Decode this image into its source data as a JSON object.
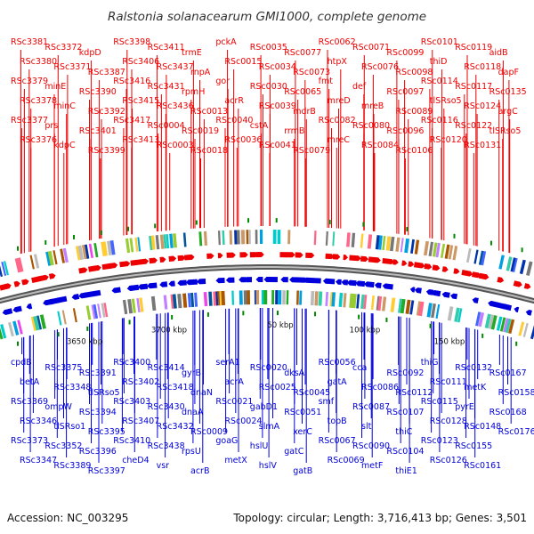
{
  "title": "Ralstonia solanacearum GMI1000, complete genome",
  "footer": {
    "accession": "Accession: NC_003295",
    "summary": "Topology: circular; Length: 3,716,413 bp; Genes: 3,501"
  },
  "colors": {
    "forward": "#ee0000",
    "reverse": "#0000dd",
    "backbone": "#888888",
    "tick": "#008800"
  },
  "scale_labels": [
    "3650 kbp",
    "3700 kbp",
    "50 kbp",
    "100 kbp",
    "150 kbp"
  ],
  "forward_genes": [
    "RSc3381",
    "RSc3380",
    "RSc3379",
    "RSc3378",
    "RSc3377",
    "RSc3376",
    "RSc3372",
    "RSc3371",
    "minE",
    "minC",
    "prs",
    "kdpC",
    "kdpD",
    "RSc3387",
    "RSc3390",
    "RSc3392",
    "RSc3401",
    "RSc3399",
    "RSc3398",
    "RSc3406",
    "RSc3416",
    "RSc3415",
    "RSc3417",
    "RSc3413",
    "RSc3411",
    "RSc3437",
    "RSc3431",
    "RSc3436",
    "RSc0004",
    "RSc0003",
    "trmE",
    "rnpA",
    "rpmH",
    "RSc0013",
    "RSc0019",
    "RSc0018",
    "pckA",
    "RSc0015",
    "gor",
    "acrR",
    "RSc0040",
    "RSc0036",
    "RSc0035",
    "RSc0034",
    "RSc0030",
    "RSc0039",
    "cstA",
    "RSc0041",
    "RSc0077",
    "RSc0073",
    "RSc0065",
    "mdrB",
    "rrmB",
    "RSc0079",
    "RSc0062",
    "htpX",
    "fmt",
    "mreD",
    "RSc0082",
    "mreC",
    "RSc0071",
    "RSc0076",
    "def",
    "mreB",
    "RSc0080",
    "RSc0084",
    "RSc0099",
    "RSc0098",
    "RSc0097",
    "RSc0089",
    "RSc0096",
    "RSc0106",
    "RSc0101",
    "thiD",
    "RSc0114",
    "tlSRso5",
    "RSc0116",
    "RSc0120",
    "RSc0119",
    "RSc0118",
    "RSc0117",
    "RSc0124",
    "RSc0122",
    "RSc0131",
    "aidB",
    "dapF",
    "RSc0135",
    "argC",
    "tlSRso5"
  ],
  "reverse_genes": [
    "cpdB",
    "betA",
    "RSc3369",
    "RSc3346",
    "RSc3373",
    "RSc3347",
    "RSc3375",
    "RSc3348",
    "ompW",
    "tlSRso1",
    "RSc3352",
    "RSc3389",
    "RSc3391",
    "tlSRso5",
    "RSc3394",
    "RSc3395",
    "RSc3396",
    "RSc3397",
    "RSc3400",
    "RSc3402",
    "RSc3403",
    "RSc3407",
    "RSc3410",
    "cheD4",
    "RSc3414",
    "RSc3418",
    "RSc3430",
    "RSc3432",
    "RSc3438",
    "vsr",
    "gyrB",
    "dnaN",
    "dnaA",
    "RSc0009",
    "rpsU",
    "acrB",
    "serA1",
    "acrA",
    "RSc0021",
    "RSc0024",
    "goaG",
    "metX",
    "RSc0020",
    "RSc0025",
    "gabD1",
    "slmA",
    "hslU",
    "hslV",
    "dksA",
    "RSc0045",
    "RSc0051",
    "xerC",
    "gatC",
    "gatB",
    "RSc0056",
    "gatA",
    "smf",
    "topB",
    "RSc0067",
    "RSc0069",
    "cca",
    "RSc0086",
    "RSc0087",
    "slt",
    "RSc0090",
    "metF",
    "RSc0092",
    "RSc0112",
    "RSc0107",
    "thiC",
    "RSc0104",
    "thiE1",
    "thiG",
    "RSc0111",
    "RSc0115",
    "RSc0128",
    "RSc0123",
    "RSc0126",
    "RSc0132",
    "metK",
    "pyrE",
    "RSc0148",
    "RSc0155",
    "RSc0161",
    "RSc0167",
    "RSc0158",
    "RSc0168",
    "RSc0176"
  ]
}
